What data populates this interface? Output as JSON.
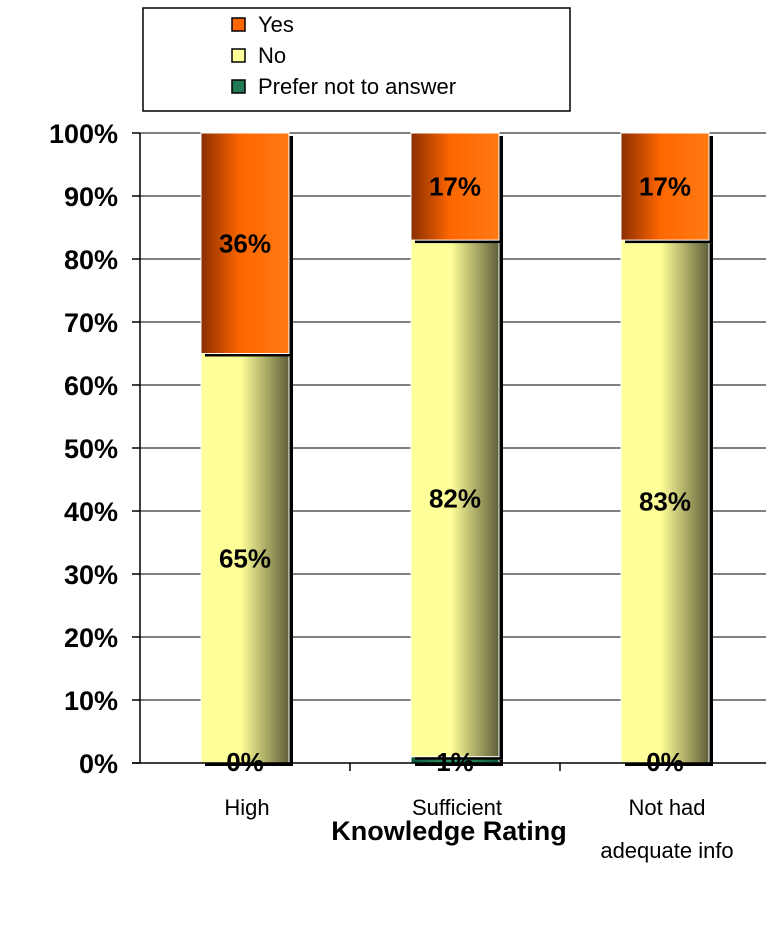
{
  "chart_data": {
    "type": "bar",
    "stacked": true,
    "categories": [
      "High",
      "Sufficient",
      "Not had adequate info"
    ],
    "category_lines": [
      [
        "High"
      ],
      [
        "Sufficient"
      ],
      [
        "Not had",
        "adequate info"
      ]
    ],
    "series": [
      {
        "name": "Prefer not to answer",
        "values": [
          0,
          1,
          0
        ],
        "labels": [
          "0%",
          "1%",
          "0%"
        ],
        "color": "#1f7a55"
      },
      {
        "name": "No",
        "values": [
          65,
          82,
          83
        ],
        "labels": [
          "65%",
          "82%",
          "83%"
        ],
        "color": "#ffff99"
      },
      {
        "name": "Yes",
        "values": [
          36,
          17,
          17
        ],
        "labels": [
          "36%",
          "17%",
          "17%"
        ],
        "color": "#ff6600"
      }
    ],
    "legend_order": [
      "Yes",
      "No",
      "Prefer not to answer"
    ],
    "legend_position": "top-center",
    "xlabel": "Knowledge Rating",
    "ylabel": "",
    "ylim": [
      0,
      100
    ],
    "yticks": [
      "0%",
      "10%",
      "20%",
      "30%",
      "40%",
      "50%",
      "60%",
      "70%",
      "80%",
      "90%",
      "100%"
    ],
    "grid": true
  }
}
